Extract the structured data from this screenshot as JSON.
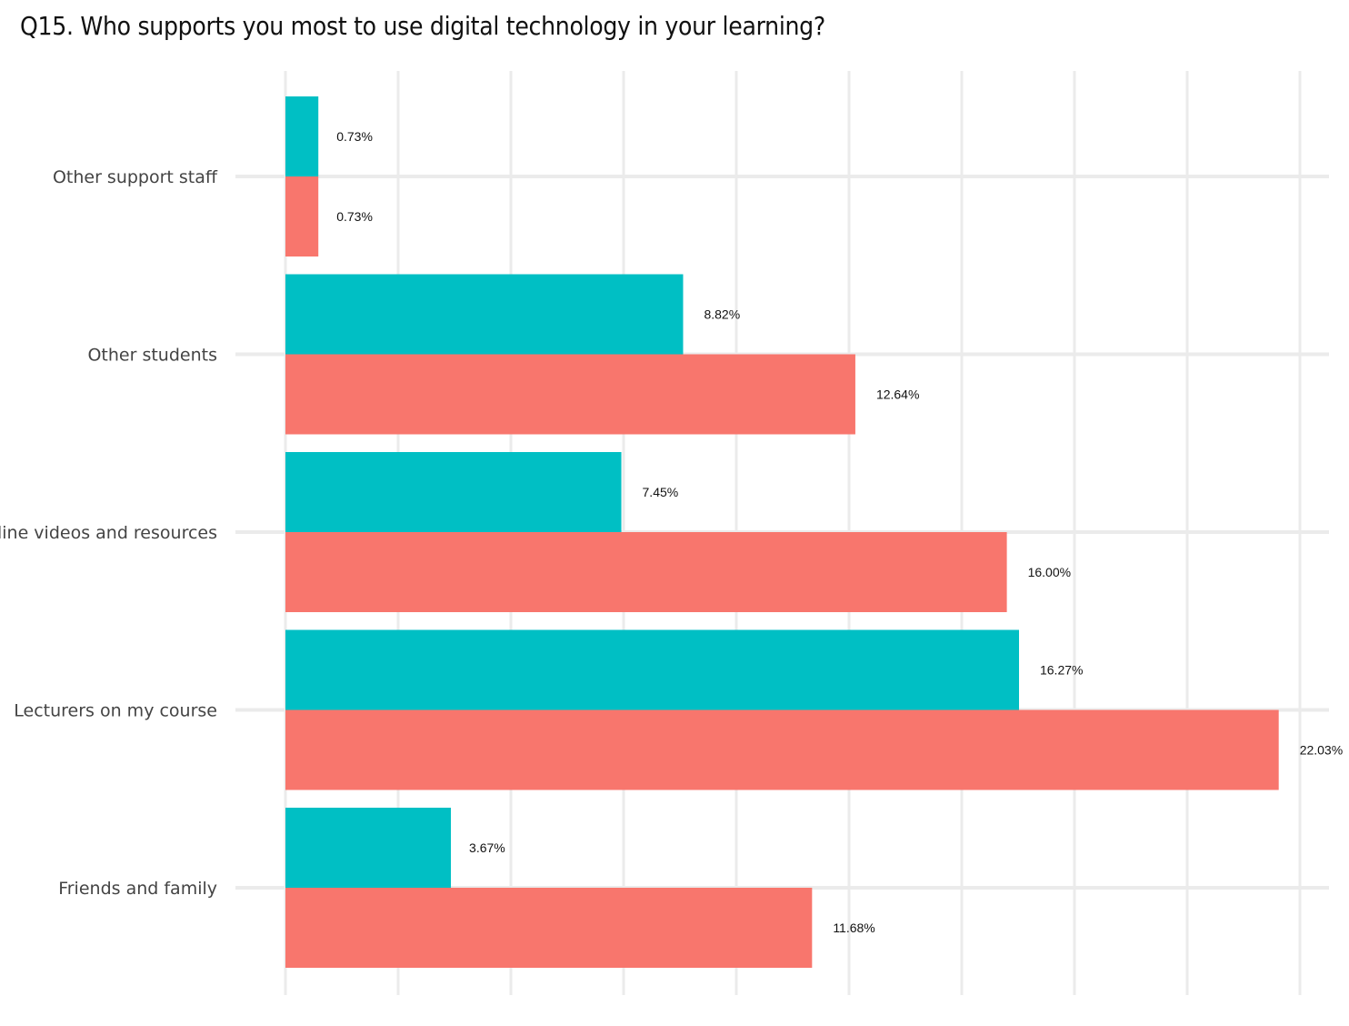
{
  "chart_data": {
    "type": "bar",
    "orientation": "horizontal",
    "title": "Q15. Who supports you most to use digital technology in your learning?",
    "categories": [
      "Friends and family",
      "Lecturers on my course",
      "Online videos and resources",
      "Other students",
      "Other support staff"
    ],
    "series": [
      {
        "color": "#F8766D",
        "values": [
          11.68,
          22.03,
          16.0,
          12.64,
          0.73
        ],
        "labels": [
          "11.68%",
          "22.03%",
          "16.00%",
          "12.64%",
          "0.73%"
        ]
      },
      {
        "color": "#00BFC4",
        "values": [
          3.67,
          16.27,
          7.45,
          8.82,
          0.73
        ],
        "labels": [
          "3.67%",
          "16.27%",
          "7.45%",
          "8.82%",
          "0.73%"
        ]
      }
    ],
    "xlim": [
      0,
      22.5
    ],
    "xlabel": "",
    "ylabel": "",
    "grid": true,
    "legend": "none"
  }
}
